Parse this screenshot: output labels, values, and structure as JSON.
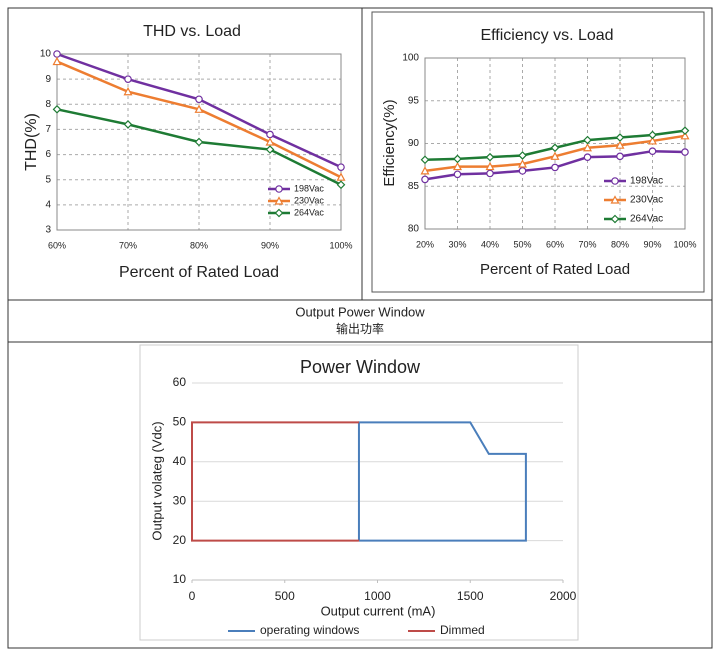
{
  "section": {
    "title": "Output Power Window",
    "subtitle": "输出功率"
  },
  "chart_data": [
    {
      "type": "line",
      "title": "THD vs. Load",
      "x_label": "Percent of Rated Load",
      "y_label": "THD(%)",
      "categories": [
        "60%",
        "70%",
        "80%",
        "90%",
        "100%"
      ],
      "ylim": [
        3,
        10
      ],
      "yticks": [
        3,
        4,
        5,
        6,
        7,
        8,
        9,
        10
      ],
      "grid": true,
      "legend": "lower right",
      "series": [
        {
          "name": "198Vac",
          "color": "#7030a0",
          "marker": "circle",
          "values": [
            10,
            9,
            8.2,
            6.8,
            5.5
          ]
        },
        {
          "name": "230Vac",
          "color": "#ed7d31",
          "marker": "triangle",
          "values": [
            9.7,
            8.5,
            7.8,
            6.5,
            5.1
          ]
        },
        {
          "name": "264Vac",
          "color": "#1e7b34",
          "marker": "diamond",
          "values": [
            7.8,
            7.2,
            6.5,
            6.2,
            4.8
          ]
        }
      ]
    },
    {
      "type": "line",
      "title": "Efficiency vs. Load",
      "x_label": "Percent of Rated Load",
      "y_label": "Efficiency(%)",
      "categories": [
        "20%",
        "30%",
        "40%",
        "50%",
        "60%",
        "70%",
        "80%",
        "90%",
        "100%"
      ],
      "ylim": [
        80,
        100
      ],
      "yticks": [
        80,
        85,
        90,
        95,
        100
      ],
      "grid": true,
      "legend": "lower right",
      "series": [
        {
          "name": "198Vac",
          "color": "#7030a0",
          "marker": "circle",
          "values": [
            85.8,
            86.4,
            86.5,
            86.8,
            87.2,
            88.4,
            88.5,
            89.1,
            89.0
          ]
        },
        {
          "name": "230Vac",
          "color": "#ed7d31",
          "marker": "triangle",
          "values": [
            86.8,
            87.3,
            87.3,
            87.6,
            88.5,
            89.5,
            89.8,
            90.3,
            90.9
          ]
        },
        {
          "name": "264Vac",
          "color": "#1e7b34",
          "marker": "diamond",
          "values": [
            88.1,
            88.2,
            88.4,
            88.6,
            89.5,
            90.4,
            90.7,
            91.0,
            91.5
          ]
        }
      ]
    },
    {
      "type": "line",
      "title": "Power Window",
      "x_label": "Output current (mA)",
      "y_label": "Output  volateg (Vdc)",
      "xlim": [
        0,
        2000
      ],
      "xticks": [
        0,
        500,
        1000,
        1500,
        2000
      ],
      "ylim": [
        10,
        60
      ],
      "yticks": [
        10,
        20,
        30,
        40,
        50,
        60
      ],
      "grid": true,
      "legend": "bottom",
      "series": [
        {
          "name": "operating windows",
          "color": "#4a7ebb",
          "x": [
            900,
            900,
            1500,
            1600,
            1800,
            1800,
            900
          ],
          "values": [
            20,
            50,
            50,
            42,
            42,
            20,
            20
          ]
        },
        {
          "name": "Dimmed",
          "color": "#be4b48",
          "x": [
            900,
            0,
            0,
            900
          ],
          "values": [
            50,
            50,
            20,
            20
          ]
        }
      ]
    }
  ]
}
